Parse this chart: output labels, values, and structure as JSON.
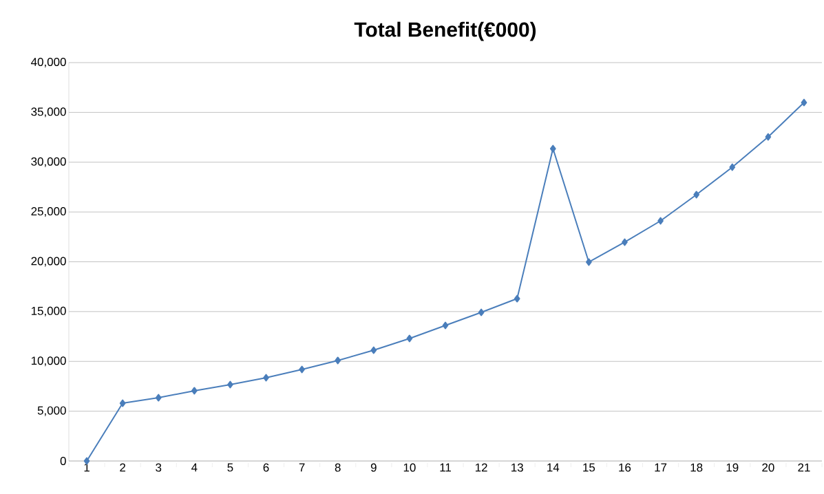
{
  "chart_data": {
    "type": "line",
    "title": "Total Benefit(€000)",
    "categories": [
      "1",
      "2",
      "3",
      "4",
      "5",
      "6",
      "7",
      "8",
      "9",
      "10",
      "11",
      "12",
      "13",
      "14",
      "15",
      "16",
      "17",
      "18",
      "19",
      "20",
      "21"
    ],
    "series": [
      {
        "color": "#4a7ebb",
        "values": [
          0,
          5800,
          6350,
          7050,
          7670,
          8360,
          9190,
          10090,
          11120,
          12300,
          13610,
          14920,
          16300,
          31360,
          19970,
          21970,
          24110,
          26740,
          29500,
          32540,
          35990
        ]
      }
    ],
    "ylim": [
      0,
      40000
    ],
    "yticks": [
      0,
      {
        "value": 5000,
        "label": "5,000"
      },
      {
        "value": 10000,
        "label": "10,000"
      },
      {
        "value": 15000,
        "label": "15,000"
      },
      {
        "value": 20000,
        "label": "20,000"
      },
      {
        "value": 25000,
        "label": "25,000"
      },
      {
        "value": 30000,
        "label": "30,000"
      },
      {
        "value": 35000,
        "label": "35,000"
      },
      {
        "value": 40000,
        "label": "40,000"
      }
    ],
    "grid": "y",
    "marker": "diamond",
    "line_style": "solid"
  }
}
